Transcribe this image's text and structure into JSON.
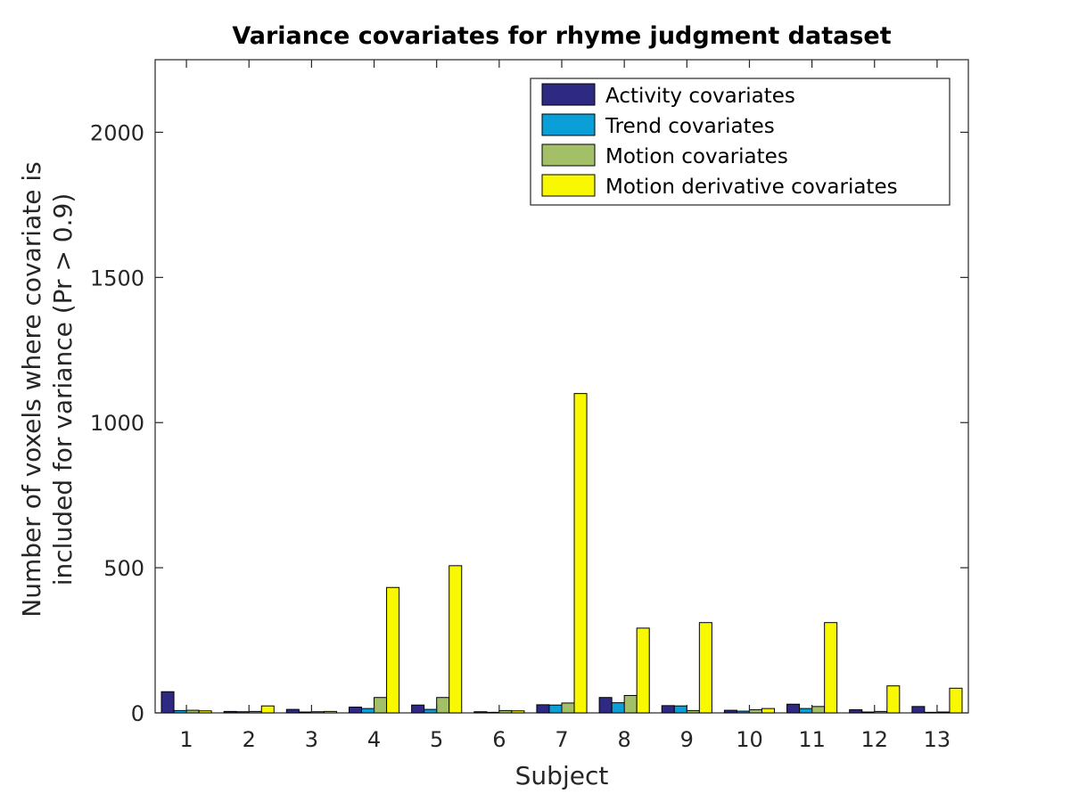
{
  "chart_data": {
    "type": "bar",
    "title": "Variance covariates for rhyme judgment dataset",
    "xlabel": "Subject",
    "ylabel": [
      "Number of voxels where covariate is",
      "included for variance (Pr > 0.9)"
    ],
    "categories": [
      "1",
      "2",
      "3",
      "4",
      "5",
      "6",
      "7",
      "8",
      "9",
      "10",
      "11",
      "12",
      "13"
    ],
    "ylim": [
      0,
      2250
    ],
    "yticks": [
      "0",
      "500",
      "1000",
      "1500",
      "2000"
    ],
    "ytick_values": [
      0,
      500,
      1000,
      1500,
      2000
    ],
    "grid": false,
    "legend_position": "top-right",
    "series": [
      {
        "name": "Activity covariates",
        "color": "#2e2a84",
        "values": [
          73,
          5,
          12,
          20,
          27,
          4,
          28,
          53,
          25,
          9,
          30,
          11,
          22
        ]
      },
      {
        "name": "Trend covariates",
        "color": "#0a9fd7",
        "values": [
          8,
          4,
          3,
          15,
          12,
          2,
          27,
          35,
          24,
          6,
          15,
          3,
          2
        ]
      },
      {
        "name": "Motion covariates",
        "color": "#a3bf68",
        "values": [
          9,
          5,
          4,
          53,
          53,
          8,
          34,
          60,
          8,
          11,
          22,
          5,
          3
        ]
      },
      {
        "name": "Motion derivative covariates",
        "color": "#f8f802",
        "values": [
          7,
          24,
          5,
          432,
          507,
          7,
          1100,
          292,
          311,
          15,
          311,
          93,
          85
        ]
      }
    ]
  }
}
